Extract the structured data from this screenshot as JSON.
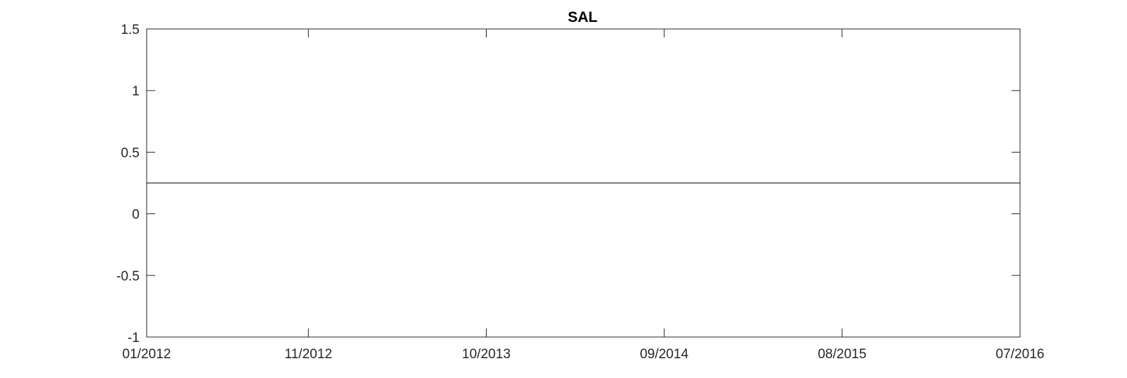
{
  "chart_data": {
    "type": "line",
    "title": "SAL",
    "xlabel": "",
    "ylabel": "",
    "x_ticks": [
      "01/2012",
      "11/2012",
      "10/2013",
      "09/2014",
      "08/2015",
      "07/2016"
    ],
    "xlim": [
      "01/2012",
      "07/2016"
    ],
    "y_ticks": [
      1.5,
      1,
      0.5,
      0,
      -0.5,
      -1
    ],
    "y_tick_labels": [
      "1.5",
      "1",
      "0.5",
      "0",
      "-0.5",
      "-1"
    ],
    "ylim": [
      -1,
      1.5
    ],
    "grid": false,
    "series": [
      {
        "x": [
          "01/2012",
          "07/2016"
        ],
        "y": [
          0.25,
          0.25
        ]
      }
    ],
    "colors": {
      "axis": "#262626",
      "line": "#000000"
    }
  }
}
